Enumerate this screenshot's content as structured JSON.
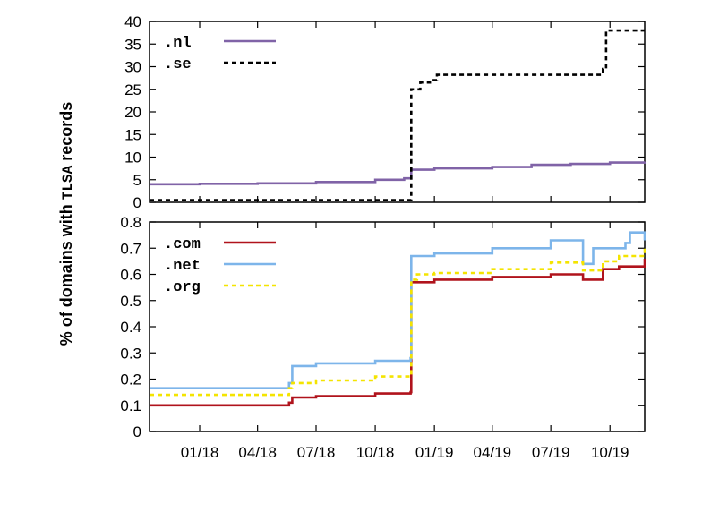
{
  "chart_data": [
    {
      "type": "line",
      "panel": "top",
      "ylim": [
        0,
        40
      ],
      "yticks": [
        0,
        5,
        10,
        15,
        20,
        25,
        30,
        35,
        40
      ],
      "legend_position": "top-left",
      "x_tick_labels": [
        "01/18",
        "04/18",
        "07/18",
        "10/18",
        "01/19",
        "04/19",
        "07/19",
        "10/19"
      ],
      "series": [
        {
          "name": ".nl",
          "color": "#8063a7",
          "style": "solid",
          "points": [
            [
              "2017-10-15",
              4.0
            ],
            [
              "2018-01-01",
              4.1
            ],
            [
              "2018-04-01",
              4.2
            ],
            [
              "2018-07-01",
              4.5
            ],
            [
              "2018-10-01",
              5.0
            ],
            [
              "2018-11-15",
              5.3
            ],
            [
              "2018-11-25",
              5.3
            ],
            [
              "2018-11-26",
              7.2
            ],
            [
              "2019-01-01",
              7.5
            ],
            [
              "2019-04-01",
              7.8
            ],
            [
              "2019-06-01",
              8.3
            ],
            [
              "2019-08-01",
              8.5
            ],
            [
              "2019-10-01",
              8.8
            ],
            [
              "2019-11-24",
              9.0
            ]
          ]
        },
        {
          "name": ".se",
          "color": "#000000",
          "style": "dashed",
          "points": [
            [
              "2017-10-15",
              0.5
            ],
            [
              "2018-11-25",
              0.5
            ],
            [
              "2018-11-26",
              25.0
            ],
            [
              "2018-12-10",
              26.5
            ],
            [
              "2018-12-25",
              27.0
            ],
            [
              "2019-01-05",
              28.2
            ],
            [
              "2019-09-10",
              28.2
            ],
            [
              "2019-09-20",
              29.5
            ],
            [
              "2019-09-25",
              38.0
            ],
            [
              "2019-11-24",
              38.0
            ]
          ]
        }
      ]
    },
    {
      "type": "line",
      "panel": "bottom",
      "ylim": [
        0,
        0.8
      ],
      "yticks": [
        0,
        0.1,
        0.2,
        0.3,
        0.4,
        0.5,
        0.6,
        0.7,
        0.8
      ],
      "legend_position": "top-left",
      "x_tick_labels": [
        "01/18",
        "04/18",
        "07/18",
        "10/18",
        "01/19",
        "04/19",
        "07/19",
        "10/19"
      ],
      "series": [
        {
          "name": ".com",
          "color": "#b0131c",
          "style": "solid",
          "points": [
            [
              "2017-10-15",
              0.1
            ],
            [
              "2018-05-20",
              0.11
            ],
            [
              "2018-05-25",
              0.13
            ],
            [
              "2018-07-01",
              0.135
            ],
            [
              "2018-10-01",
              0.145
            ],
            [
              "2018-11-25",
              0.15
            ],
            [
              "2018-11-26",
              0.57
            ],
            [
              "2019-01-01",
              0.58
            ],
            [
              "2019-04-01",
              0.59
            ],
            [
              "2019-07-01",
              0.6
            ],
            [
              "2019-08-15",
              0.6
            ],
            [
              "2019-08-20",
              0.58
            ],
            [
              "2019-09-15",
              0.58
            ],
            [
              "2019-09-20",
              0.62
            ],
            [
              "2019-10-15",
              0.63
            ],
            [
              "2019-11-24",
              0.66
            ]
          ]
        },
        {
          "name": ".net",
          "color": "#7db5ea",
          "style": "solid",
          "points": [
            [
              "2017-10-15",
              0.165
            ],
            [
              "2018-05-20",
              0.185
            ],
            [
              "2018-05-25",
              0.25
            ],
            [
              "2018-07-01",
              0.26
            ],
            [
              "2018-10-01",
              0.27
            ],
            [
              "2018-11-25",
              0.28
            ],
            [
              "2018-11-26",
              0.67
            ],
            [
              "2019-01-01",
              0.68
            ],
            [
              "2019-04-01",
              0.7
            ],
            [
              "2019-07-01",
              0.73
            ],
            [
              "2019-08-15",
              0.73
            ],
            [
              "2019-08-20",
              0.64
            ],
            [
              "2019-08-28",
              0.64
            ],
            [
              "2019-09-05",
              0.7
            ],
            [
              "2019-10-25",
              0.72
            ],
            [
              "2019-11-01",
              0.76
            ],
            [
              "2019-11-24",
              0.73
            ]
          ]
        },
        {
          "name": ".org",
          "color": "#f4e400",
          "style": "dashed",
          "points": [
            [
              "2017-10-15",
              0.14
            ],
            [
              "2018-05-20",
              0.165
            ],
            [
              "2018-05-25",
              0.185
            ],
            [
              "2018-07-01",
              0.195
            ],
            [
              "2018-10-01",
              0.21
            ],
            [
              "2018-11-25",
              0.215
            ],
            [
              "2018-11-26",
              0.58
            ],
            [
              "2018-12-05",
              0.6
            ],
            [
              "2019-01-01",
              0.605
            ],
            [
              "2019-04-01",
              0.62
            ],
            [
              "2019-07-01",
              0.645
            ],
            [
              "2019-08-15",
              0.645
            ],
            [
              "2019-08-20",
              0.615
            ],
            [
              "2019-09-15",
              0.615
            ],
            [
              "2019-09-20",
              0.65
            ],
            [
              "2019-10-15",
              0.67
            ],
            [
              "2019-11-24",
              0.7
            ]
          ]
        }
      ]
    }
  ],
  "shared": {
    "ylabel_prefix": "% of domains with ",
    "ylabel_code": "TLSA",
    "ylabel_suffix": " records"
  }
}
